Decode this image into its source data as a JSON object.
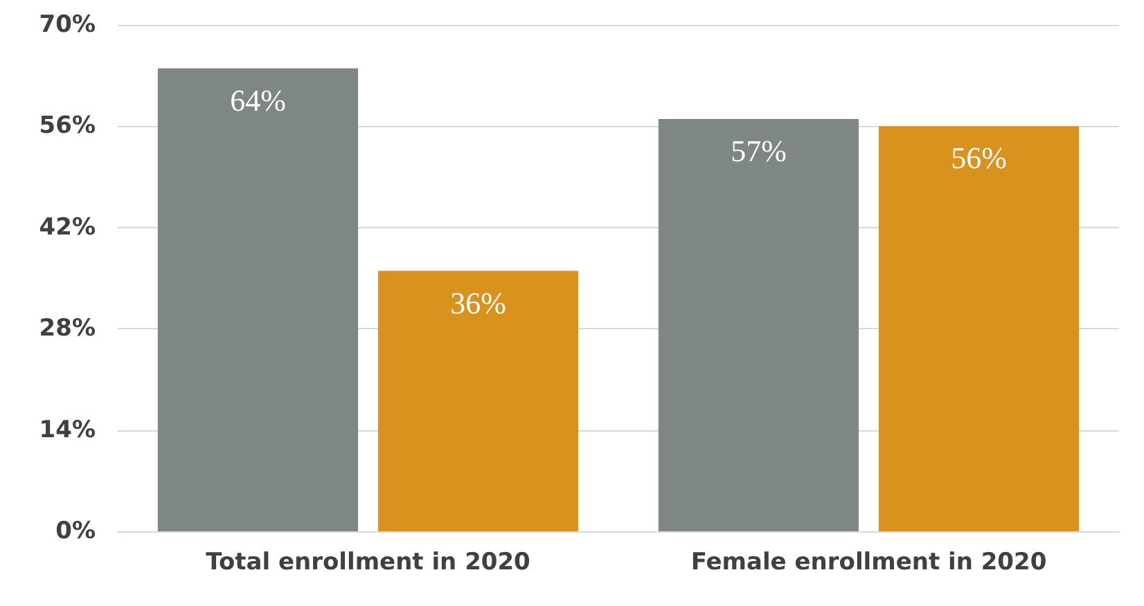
{
  "chart_data": {
    "type": "bar",
    "categories": [
      "Total enrollment in 2020",
      "Female enrollment in 2020"
    ],
    "series": [
      {
        "color": "#7f8782",
        "values": [
          64,
          57
        ],
        "value_labels": [
          "64%",
          "57%"
        ]
      },
      {
        "color": "#d9921e",
        "values": [
          36,
          56
        ],
        "value_labels": [
          "36%",
          "56%"
        ]
      }
    ],
    "ylim": [
      0,
      70
    ],
    "yticks": [
      {
        "value": 0,
        "label": "0%"
      },
      {
        "value": 14,
        "label": "14%"
      },
      {
        "value": 28,
        "label": "28%"
      },
      {
        "value": 42,
        "label": "42%"
      },
      {
        "value": 56,
        "label": "56%"
      },
      {
        "value": 70,
        "label": "70%"
      }
    ],
    "grid": "y"
  }
}
